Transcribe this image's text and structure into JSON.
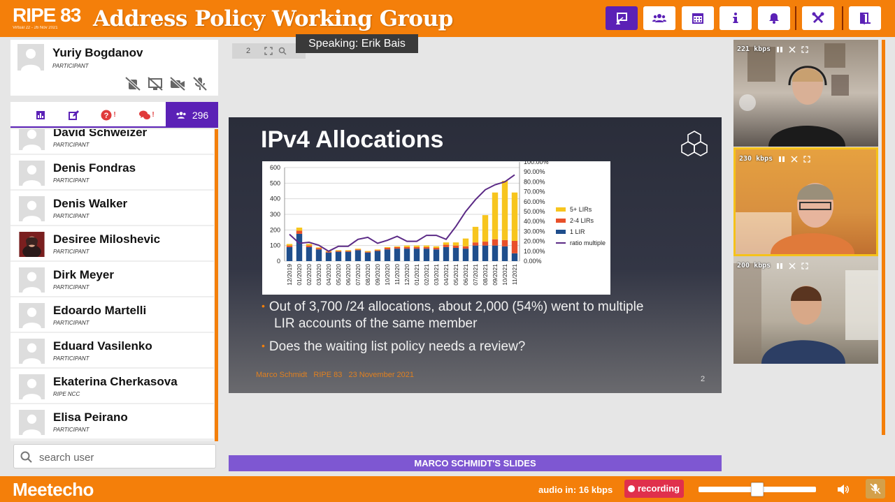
{
  "header": {
    "logo_big": "RIPE 83",
    "logo_sub": "Virtual 22 - 26 Nov 2021",
    "title": "Address Policy Working Group",
    "buttons": [
      {
        "name": "slides-button",
        "icon": "presentation-icon",
        "active": true
      },
      {
        "name": "participants-button",
        "icon": "users-icon"
      },
      {
        "name": "agenda-button",
        "icon": "calendar-icon"
      },
      {
        "name": "info-button",
        "icon": "info-icon"
      },
      {
        "name": "notifications-button",
        "icon": "bell-icon"
      },
      {
        "name": "settings-button",
        "icon": "tools-icon"
      },
      {
        "name": "exit-button",
        "icon": "exit-door-icon"
      }
    ],
    "accent": "#f47f0a",
    "purple": "#5b21b6"
  },
  "speaking": "Speaking: Erik Bais",
  "me": {
    "name": "Yuriy Bogdanov",
    "role": "PARTICIPANT"
  },
  "tabs": {
    "participants_count": "296"
  },
  "participants": [
    {
      "name": "David Schweizer",
      "role": "PARTICIPANT"
    },
    {
      "name": "Denis Fondras",
      "role": "PARTICIPANT"
    },
    {
      "name": "Denis Walker",
      "role": "PARTICIPANT"
    },
    {
      "name": "Desiree Miloshevic",
      "role": "PARTICIPANT",
      "photo": true
    },
    {
      "name": "Dirk Meyer",
      "role": "PARTICIPANT"
    },
    {
      "name": "Edoardo Martelli",
      "role": "PARTICIPANT"
    },
    {
      "name": "Eduard Vasilenko",
      "role": "PARTICIPANT"
    },
    {
      "name": "Ekaterina Cherkasova",
      "role": "RIPE NCC"
    },
    {
      "name": "Elisa Peirano",
      "role": "PARTICIPANT"
    }
  ],
  "search": {
    "placeholder": "search user"
  },
  "slide_tools": {
    "page": "2"
  },
  "slide": {
    "title": "IPv4 Allocations",
    "bullet1_line1": "Out of 3,700 /24 allocations, about 2,000 (54%) went to multiple",
    "bullet1_line2": "LIR accounts of the same member",
    "bullet2": "Does the waiting list policy needs a review?",
    "footer_author": "Marco Schmidt",
    "footer_event": "RIPE 83",
    "footer_date": "23 November 2021",
    "number": "2"
  },
  "slide_label": "MARCO SCHMIDT'S SLIDES",
  "videos": [
    {
      "kbps": "221 kbps"
    },
    {
      "kbps": "230 kbps"
    },
    {
      "kbps": "200 kbps"
    }
  ],
  "footer": {
    "brand": "Meetecho",
    "audio": "audio in: 16 kbps",
    "recording": "recording",
    "volume_level": 0.5
  },
  "chart_data": {
    "type": "bar",
    "categories": [
      "12/2019",
      "01/2020",
      "02/2020",
      "03/2020",
      "04/2020",
      "05/2020",
      "06/2020",
      "07/2020",
      "08/2020",
      "09/2020",
      "10/2020",
      "11/2020",
      "12/2020",
      "01/2021",
      "02/2021",
      "03/2021",
      "04/2021",
      "05/2021",
      "06/2021",
      "07/2021",
      "08/2021",
      "09/2021",
      "10/2021",
      "11/2021"
    ],
    "series": [
      {
        "name": "5+ LIRs",
        "color": "#f7c51e",
        "values": [
          10,
          20,
          10,
          5,
          5,
          5,
          5,
          5,
          5,
          5,
          5,
          5,
          10,
          10,
          10,
          10,
          15,
          20,
          50,
          100,
          170,
          300,
          380,
          310
        ]
      },
      {
        "name": "2-4 LIRs",
        "color": "#e8502a",
        "values": [
          10,
          20,
          10,
          8,
          5,
          5,
          5,
          5,
          5,
          5,
          10,
          10,
          10,
          10,
          10,
          10,
          15,
          15,
          15,
          20,
          25,
          40,
          40,
          80
        ]
      },
      {
        "name": "1 LIR",
        "color": "#1f4e8c",
        "values": [
          90,
          175,
          90,
          75,
          55,
          60,
          60,
          70,
          55,
          65,
          75,
          80,
          80,
          80,
          80,
          75,
          90,
          85,
          80,
          100,
          100,
          100,
          95,
          50
        ]
      },
      {
        "name": "ratio multiple",
        "color": "#5b2a86",
        "axis": "right",
        "values": [
          0.27,
          0.18,
          0.19,
          0.16,
          0.1,
          0.15,
          0.15,
          0.22,
          0.24,
          0.18,
          0.21,
          0.25,
          0.2,
          0.2,
          0.26,
          0.26,
          0.22,
          0.35,
          0.5,
          0.62,
          0.72,
          0.77,
          0.8,
          0.87
        ]
      }
    ],
    "ylim": [
      0,
      600
    ],
    "y2lim": [
      0,
      1
    ],
    "yticks": [
      "600",
      "500",
      "400",
      "300",
      "200",
      "100",
      "0"
    ],
    "y2ticks": [
      "100.00%",
      "90.00%",
      "80.00%",
      "70.00%",
      "60.00%",
      "50.00%",
      "40.00%",
      "30.00%",
      "20.00%",
      "10.00%",
      "0.00%"
    ],
    "legend": "right",
    "grid": true
  }
}
